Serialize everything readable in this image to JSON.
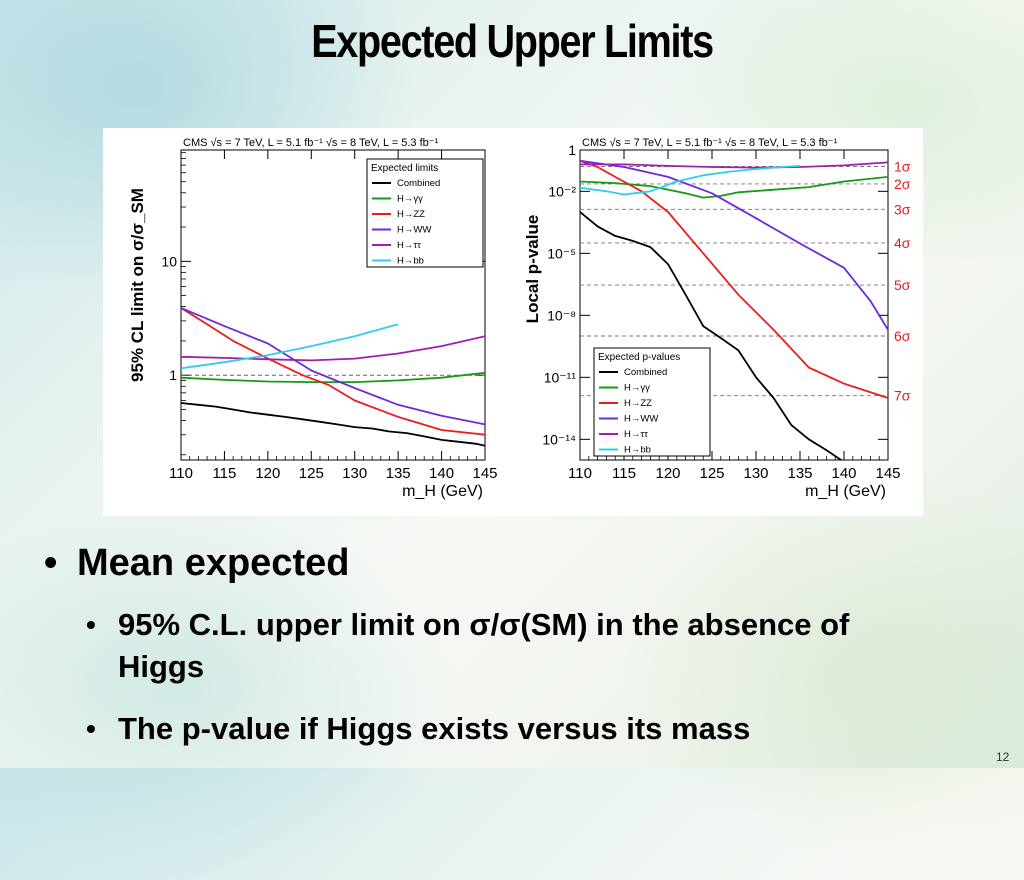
{
  "slide": {
    "title": "Expected Upper Limits",
    "bullet": "Mean expected",
    "subbullets": [
      "95% C.L. upper limit on σ/σ(SM) in the absence of Higgs",
      "The p-value if Higgs exists versus its mass"
    ],
    "page_number": "12"
  },
  "colors": {
    "Combined": "#000000",
    "H→γγ": "#169a16",
    "H→ZZ": "#ee1d1d",
    "H→WW": "#6d28e0",
    "H→ττ": "#a01faa",
    "H→bb": "#33ccee",
    "sigma_labels": "#e02020"
  },
  "chart_data": [
    {
      "type": "line",
      "header": "CMS  √s = 7 TeV, L = 5.1 fb⁻¹  √s = 8 TeV, L = 5.3 fb⁻¹",
      "xlabel": "m_H (GeV)",
      "ylabel": "95% CL limit on σ/σ_SM",
      "yscale": "log",
      "xlim": [
        110,
        145
      ],
      "ylim": [
        0.18,
        95
      ],
      "xticks": [
        "110",
        "115",
        "120",
        "125",
        "130",
        "135",
        "140",
        "145"
      ],
      "yticks": [
        {
          "value": 1,
          "label": "1"
        },
        {
          "value": 10,
          "label": "10"
        }
      ],
      "reference_line": {
        "y": 1,
        "style": "dashed"
      },
      "legend": {
        "title": "Expected limits",
        "position": "top-right"
      },
      "series": [
        {
          "name": "Combined",
          "x": [
            110,
            112,
            114,
            116,
            118,
            120,
            122,
            124,
            126,
            128,
            130,
            132,
            134,
            136,
            138,
            140,
            142,
            144,
            145
          ],
          "y": [
            0.57,
            0.55,
            0.53,
            0.5,
            0.47,
            0.45,
            0.43,
            0.41,
            0.39,
            0.37,
            0.35,
            0.34,
            0.32,
            0.31,
            0.29,
            0.27,
            0.26,
            0.25,
            0.24
          ]
        },
        {
          "name": "H→γγ",
          "x": [
            110,
            115,
            120,
            125,
            130,
            135,
            140,
            145
          ],
          "y": [
            0.95,
            0.91,
            0.88,
            0.87,
            0.87,
            0.9,
            0.95,
            1.05
          ]
        },
        {
          "name": "H→ZZ",
          "x": [
            110,
            113,
            116,
            120,
            124,
            127,
            130,
            135,
            140,
            145
          ],
          "y": [
            3.9,
            2.8,
            2.0,
            1.4,
            1.0,
            0.82,
            0.6,
            0.43,
            0.33,
            0.3
          ]
        },
        {
          "name": "H→WW",
          "x": [
            110,
            115,
            120,
            125,
            130,
            135,
            140,
            145
          ],
          "y": [
            3.9,
            2.7,
            1.9,
            1.1,
            0.77,
            0.55,
            0.44,
            0.37
          ]
        },
        {
          "name": "H→ττ",
          "x": [
            110,
            115,
            120,
            125,
            130,
            135,
            140,
            145
          ],
          "y": [
            1.45,
            1.42,
            1.38,
            1.35,
            1.4,
            1.55,
            1.8,
            2.2
          ]
        },
        {
          "name": "H→bb",
          "x": [
            110,
            115,
            120,
            125,
            130,
            135
          ],
          "y": [
            1.15,
            1.3,
            1.5,
            1.8,
            2.2,
            2.8
          ]
        }
      ]
    },
    {
      "type": "line",
      "header": "CMS  √s = 7 TeV, L = 5.1 fb⁻¹  √s = 8 TeV, L = 5.3 fb⁻¹",
      "xlabel": "m_H (GeV)",
      "ylabel": "Local p-value",
      "yscale": "log",
      "xlim": [
        110,
        145
      ],
      "ylim": [
        1e-15,
        1
      ],
      "xticks": [
        "110",
        "115",
        "120",
        "125",
        "130",
        "135",
        "140",
        "145"
      ],
      "yticks": [
        {
          "value": 1,
          "label": "1"
        },
        {
          "value": 0.01,
          "label": "10⁻²"
        },
        {
          "value": 1e-05,
          "label": "10⁻⁵"
        },
        {
          "value": 1e-08,
          "label": "10⁻⁸"
        },
        {
          "value": 1e-11,
          "label": "10⁻¹¹"
        },
        {
          "value": 1e-14,
          "label": "10⁻¹⁴"
        }
      ],
      "sigma_lines": [
        {
          "label": "1σ",
          "p": 0.159
        },
        {
          "label": "2σ",
          "p": 0.0228
        },
        {
          "label": "3σ",
          "p": 0.00135
        },
        {
          "label": "4σ",
          "p": 3.2e-05
        },
        {
          "label": "5σ",
          "p": 2.9e-07
        },
        {
          "label": "6σ",
          "p": 1e-09
        },
        {
          "label": "7σ",
          "p": 1.3e-12
        }
      ],
      "legend": {
        "title": "Expected p-values",
        "position": "bottom-left"
      },
      "series": [
        {
          "name": "Combined",
          "x": [
            110,
            112,
            114,
            116,
            118,
            120,
            122,
            124,
            126,
            128,
            130,
            132,
            134,
            136,
            138,
            140,
            142
          ],
          "y": [
            0.001,
            0.0002,
            7e-05,
            4e-05,
            2e-05,
            3e-06,
            1e-07,
            3e-09,
            8e-10,
            2e-10,
            1e-11,
            1e-12,
            5e-14,
            1e-14,
            3e-15,
            8e-16,
            5e-17
          ]
        },
        {
          "name": "H→γγ",
          "x": [
            110,
            114,
            118,
            122,
            124,
            126,
            128,
            132,
            136,
            140,
            145
          ],
          "y": [
            0.03,
            0.025,
            0.018,
            0.008,
            0.005,
            0.006,
            0.009,
            0.012,
            0.016,
            0.03,
            0.05
          ]
        },
        {
          "name": "H→ZZ",
          "x": [
            110,
            112,
            114,
            117,
            120,
            124,
            128,
            132,
            136,
            140,
            145
          ],
          "y": [
            0.3,
            0.15,
            0.05,
            0.01,
            0.001,
            1e-05,
            1e-07,
            2e-09,
            3e-11,
            5e-12,
            1e-12
          ]
        },
        {
          "name": "H→WW",
          "x": [
            110,
            115,
            120,
            125,
            130,
            135,
            140,
            143,
            145
          ],
          "y": [
            0.3,
            0.15,
            0.05,
            0.008,
            0.0005,
            3e-05,
            2e-06,
            5e-08,
            2e-09
          ]
        },
        {
          "name": "H→ττ",
          "x": [
            110,
            115,
            120,
            125,
            130,
            135,
            140,
            145
          ],
          "y": [
            0.2,
            0.2,
            0.17,
            0.15,
            0.14,
            0.15,
            0.18,
            0.25
          ]
        },
        {
          "name": "H→bb",
          "x": [
            110,
            113,
            115,
            118,
            121,
            124,
            127,
            130,
            133,
            135
          ],
          "y": [
            0.015,
            0.01,
            0.007,
            0.01,
            0.03,
            0.06,
            0.09,
            0.12,
            0.15,
            0.17
          ]
        }
      ]
    }
  ]
}
